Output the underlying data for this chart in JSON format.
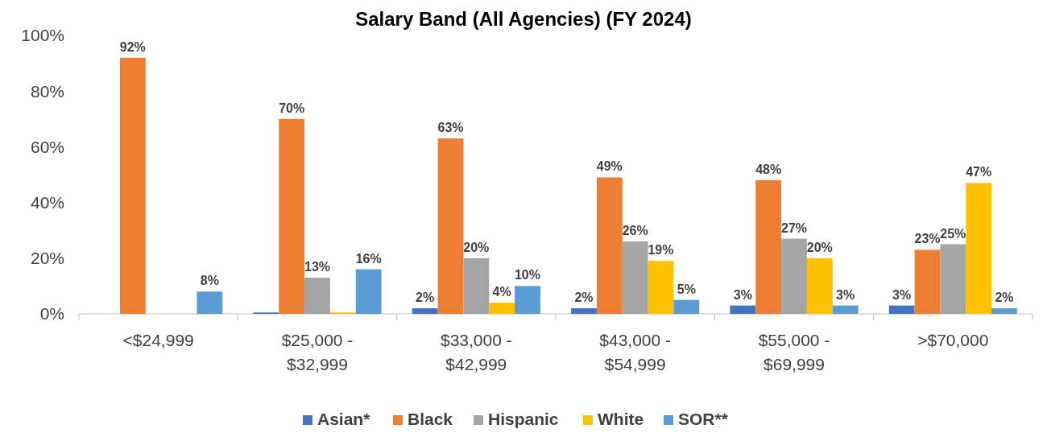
{
  "chart_data": {
    "type": "bar",
    "title": "Salary Band (All Agencies) (FY 2024)",
    "categories": [
      "<$24,999",
      "$25,000 - $32,999",
      "$33,000 - $42,999",
      "$43,000 - $54,999",
      "$55,000 - $69,999",
      ">$70,000"
    ],
    "series": [
      {
        "name": "Asian*",
        "color": "#4472c4",
        "values": [
          0,
          0.5,
          2,
          2,
          3,
          3
        ],
        "value_labels": [
          null,
          null,
          "2%",
          "2%",
          "3%",
          "3%"
        ]
      },
      {
        "name": "Black",
        "color": "#ed7d31",
        "values": [
          92,
          70,
          63,
          49,
          48,
          23
        ],
        "value_labels": [
          "92%",
          "70%",
          "63%",
          "49%",
          "48%",
          "23%"
        ]
      },
      {
        "name": "Hispanic",
        "color": "#a5a5a5",
        "values": [
          0,
          13,
          20,
          26,
          27,
          25
        ],
        "value_labels": [
          null,
          "13%",
          "20%",
          "26%",
          "27%",
          "25%"
        ]
      },
      {
        "name": "White",
        "color": "#ffc000",
        "values": [
          0,
          0.5,
          4,
          19,
          20,
          47
        ],
        "value_labels": [
          null,
          null,
          "4%",
          "19%",
          "20%",
          "47%"
        ]
      },
      {
        "name": "SOR**",
        "color": "#5b9bd5",
        "values": [
          8,
          16,
          10,
          5,
          3,
          2
        ],
        "value_labels": [
          "8%",
          "16%",
          "10%",
          "5%",
          "3%",
          "2%"
        ]
      }
    ],
    "ylim": [
      0,
      100
    ],
    "yticks": [
      {
        "value": 0,
        "label": "0%"
      },
      {
        "value": 20,
        "label": "20%"
      },
      {
        "value": 40,
        "label": "40%"
      },
      {
        "value": 60,
        "label": "60%"
      },
      {
        "value": 80,
        "label": "80%"
      },
      {
        "value": 100,
        "label": "100%"
      }
    ],
    "grid": false,
    "legend": "bottom"
  }
}
